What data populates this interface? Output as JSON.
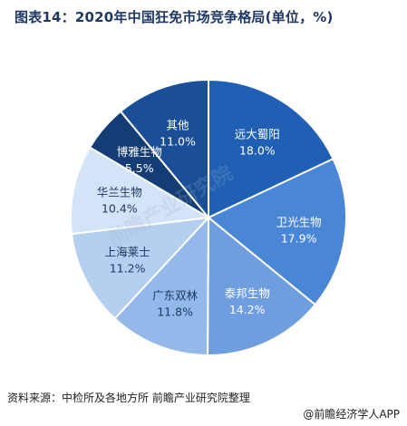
{
  "title": "图表14：2020年中国狂免市场竞争格局(单位，%)",
  "source": "资料来源：中检所及各地方所 前瞻产业研究院整理",
  "brand": "@前瞻经济学人APP",
  "watermark": "前瞻产业研究院",
  "chart_data": {
    "type": "pie",
    "title": "图表14：2020年中国狂免市场竞争格局(单位，%)",
    "unit": "%",
    "slices": [
      {
        "label": "远大蜀阳",
        "value": 18.0,
        "value_label": "18.0%",
        "color": "#1f5fb4"
      },
      {
        "label": "卫光生物",
        "value": 17.9,
        "value_label": "17.9%",
        "color": "#4a86d6"
      },
      {
        "label": "泰邦生物",
        "value": 14.2,
        "value_label": "14.2%",
        "color": "#6e9de0"
      },
      {
        "label": "广东双林",
        "value": 11.8,
        "value_label": "11.8%",
        "color": "#93b8ea"
      },
      {
        "label": "上海莱士",
        "value": 11.2,
        "value_label": "11.2%",
        "color": "#b5cff1"
      },
      {
        "label": "华兰生物",
        "value": 10.4,
        "value_label": "10.4%",
        "color": "#d3e3f8"
      },
      {
        "label": "博雅生物",
        "value": 5.5,
        "value_label": "5.5%",
        "color": "#143d75"
      },
      {
        "label": "其他",
        "value": 11.0,
        "value_label": "11.0%",
        "color": "#1a4f97"
      }
    ]
  }
}
